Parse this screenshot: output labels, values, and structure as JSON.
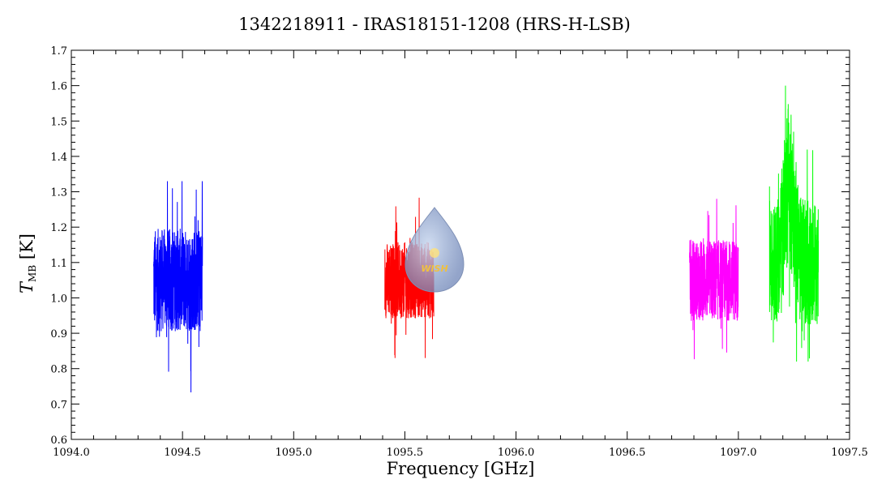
{
  "chart_data": {
    "type": "line",
    "title": "1342218911 - IRAS18151-1208 (HRS-H-LSB)",
    "xlabel": "Frequency [GHz]",
    "ylabel": {
      "main": "T",
      "sub": "MB",
      "unit": "[K]"
    },
    "xlim": [
      1094.0,
      1097.5
    ],
    "ylim": [
      0.6,
      1.7
    ],
    "xticks": [
      "1094.0",
      "1094.5",
      "1095.0",
      "1095.5",
      "1096.0",
      "1096.5",
      "1097.0",
      "1097.5"
    ],
    "yticks": [
      "0.6",
      "0.7",
      "0.8",
      "0.9",
      "1.0",
      "1.1",
      "1.2",
      "1.3",
      "1.4",
      "1.5",
      "1.6",
      "1.7"
    ],
    "grid": false,
    "series": [
      {
        "color": "#0000ff",
        "x_range": [
          1094.37,
          1094.59
        ],
        "baseline": 1.05,
        "noise_min": 0.68,
        "noise_max": 1.33
      },
      {
        "color": "#ff0000",
        "x_range": [
          1095.41,
          1095.63
        ],
        "baseline": 1.05,
        "noise_min": 0.83,
        "noise_max": 1.31
      },
      {
        "color": "#ff00ff",
        "x_range": [
          1096.78,
          1097.0
        ],
        "baseline": 1.05,
        "noise_min": 0.77,
        "noise_max": 1.28
      },
      {
        "color": "#00ff00",
        "x_range": [
          1097.14,
          1097.36
        ],
        "baseline": 1.1,
        "noise_min": 0.82,
        "noise_max": 1.6,
        "peak_x": 1097.23,
        "peak_y": 1.6
      }
    ],
    "logo": {
      "text": "WISH"
    }
  }
}
